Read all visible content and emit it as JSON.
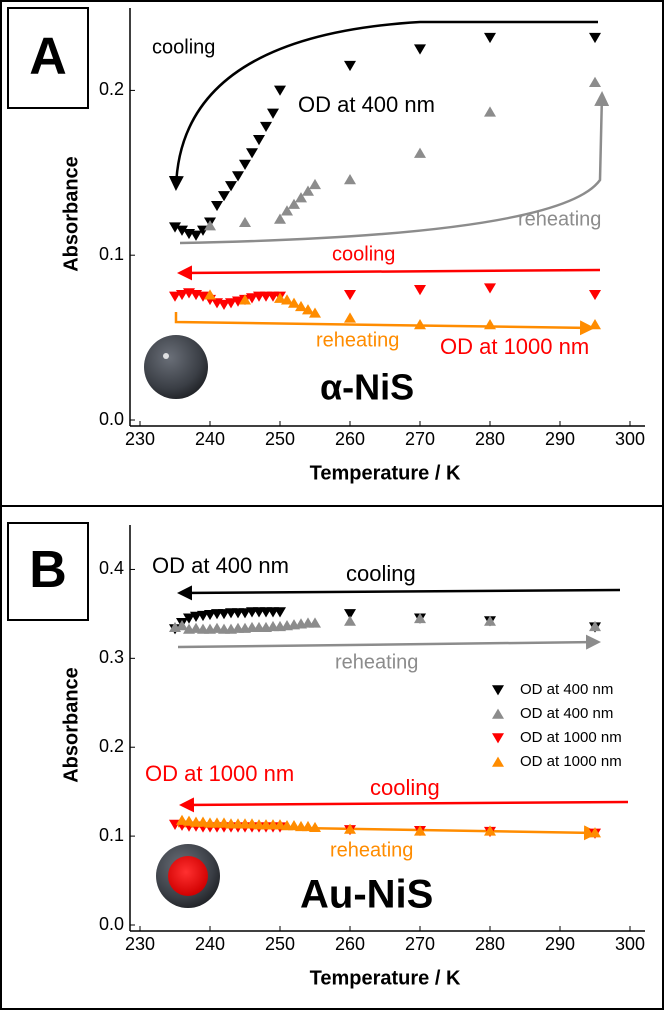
{
  "chart_data": [
    {
      "type": "scatter",
      "panel_label": "A",
      "xlabel": "Temperature / K",
      "ylabel": "Absorbance",
      "xlim": [
        230,
        300
      ],
      "xticks": [
        230,
        240,
        250,
        260,
        270,
        280,
        290,
        300
      ],
      "ylim": [
        0,
        0.25
      ],
      "yticks": [
        {
          "value": 0,
          "label": "0.0"
        },
        0.1,
        0.2
      ],
      "series": [
        {
          "color": "#000000",
          "marker": "v",
          "x": [
            235,
            236,
            237,
            238,
            239,
            240,
            241,
            242,
            243,
            244,
            245,
            246,
            247,
            248,
            249,
            250,
            260,
            270,
            280,
            295
          ],
          "values": [
            0.117,
            0.115,
            0.113,
            0.112,
            0.115,
            0.12,
            0.13,
            0.136,
            0.142,
            0.148,
            0.155,
            0.162,
            0.17,
            0.178,
            0.186,
            0.2,
            0.215,
            0.225,
            0.232,
            0.232
          ]
        },
        {
          "color": "#8c8c8c",
          "marker": "^",
          "x": [
            240,
            245,
            250,
            251,
            252,
            253,
            254,
            255,
            260,
            270,
            280,
            295
          ],
          "values": [
            0.118,
            0.12,
            0.122,
            0.127,
            0.131,
            0.135,
            0.139,
            0.143,
            0.146,
            0.162,
            0.187,
            0.205
          ]
        },
        {
          "color": "#ff0000",
          "marker": "v",
          "x": [
            235,
            236,
            237,
            238,
            239,
            240,
            241,
            242,
            243,
            244,
            245,
            246,
            247,
            248,
            249,
            250,
            260,
            270,
            280,
            295
          ],
          "values": [
            0.075,
            0.076,
            0.077,
            0.076,
            0.075,
            0.073,
            0.071,
            0.07,
            0.071,
            0.072,
            0.073,
            0.074,
            0.075,
            0.075,
            0.075,
            0.075,
            0.076,
            0.079,
            0.08,
            0.076
          ]
        },
        {
          "color": "#ff8c00",
          "marker": "^",
          "x": [
            240,
            245,
            250,
            251,
            252,
            253,
            254,
            255,
            260,
            270,
            280,
            295
          ],
          "values": [
            0.076,
            0.073,
            0.074,
            0.073,
            0.071,
            0.069,
            0.067,
            0.065,
            0.062,
            0.058,
            0.058,
            0.058
          ]
        }
      ],
      "annotations": [
        "cooling",
        "OD at 400 nm",
        "reheating",
        "cooling",
        "reheating",
        "OD at 1000 nm",
        "α-NiS"
      ]
    },
    {
      "type": "scatter",
      "panel_label": "B",
      "xlabel": "Temperature / K",
      "ylabel": "Absorbance",
      "xlim": [
        230,
        300
      ],
      "xticks": [
        230,
        240,
        250,
        260,
        270,
        280,
        290,
        300
      ],
      "ylim": [
        0,
        0.45
      ],
      "yticks": [
        {
          "value": 0,
          "label": "0.0"
        },
        0.1,
        0.2,
        0.3,
        0.4
      ],
      "legend": "center right",
      "series": [
        {
          "name": "OD at 400 nm",
          "color": "#000000",
          "marker": "v",
          "x": [
            235,
            236,
            237,
            238,
            239,
            240,
            241,
            242,
            243,
            244,
            245,
            246,
            247,
            248,
            249,
            250,
            260,
            270,
            280,
            295
          ],
          "values": [
            0.333,
            0.34,
            0.345,
            0.347,
            0.348,
            0.349,
            0.35,
            0.35,
            0.351,
            0.351,
            0.351,
            0.352,
            0.352,
            0.352,
            0.352,
            0.352,
            0.35,
            0.345,
            0.342,
            0.335
          ]
        },
        {
          "name": "OD at 400 nm",
          "color": "#8c8c8c",
          "marker": "^",
          "x": [
            235,
            236,
            237,
            238,
            239,
            240,
            241,
            242,
            243,
            244,
            245,
            246,
            247,
            248,
            249,
            250,
            251,
            252,
            253,
            254,
            255,
            260,
            270,
            280,
            295
          ],
          "values": [
            0.335,
            0.337,
            0.333,
            0.334,
            0.333,
            0.333,
            0.334,
            0.333,
            0.333,
            0.334,
            0.334,
            0.335,
            0.335,
            0.335,
            0.336,
            0.336,
            0.337,
            0.338,
            0.339,
            0.34,
            0.34,
            0.342,
            0.345,
            0.342,
            0.336
          ]
        },
        {
          "name": "OD at 1000 nm",
          "color": "#ff0000",
          "marker": "v",
          "x": [
            235,
            236,
            237,
            238,
            239,
            240,
            241,
            242,
            243,
            244,
            245,
            246,
            247,
            248,
            249,
            250,
            260,
            270,
            280,
            295
          ],
          "values": [
            0.113,
            0.112,
            0.111,
            0.111,
            0.11,
            0.11,
            0.11,
            0.11,
            0.11,
            0.11,
            0.11,
            0.11,
            0.11,
            0.11,
            0.11,
            0.11,
            0.107,
            0.106,
            0.105,
            0.103
          ]
        },
        {
          "name": "OD at 1000 nm",
          "color": "#ff8c00",
          "marker": "^",
          "x": [
            236,
            237,
            238,
            239,
            240,
            241,
            242,
            243,
            244,
            245,
            246,
            247,
            248,
            249,
            250,
            251,
            252,
            253,
            254,
            255,
            260,
            270,
            280,
            295
          ],
          "values": [
            0.118,
            0.117,
            0.116,
            0.116,
            0.115,
            0.115,
            0.115,
            0.114,
            0.114,
            0.114,
            0.114,
            0.113,
            0.113,
            0.113,
            0.113,
            0.112,
            0.112,
            0.111,
            0.111,
            0.11,
            0.108,
            0.106,
            0.106,
            0.104
          ]
        }
      ],
      "annotations": [
        "OD at 400 nm",
        "cooling",
        "reheating",
        "OD at 1000 nm",
        "cooling",
        "reheating",
        "Au-NiS"
      ]
    }
  ]
}
